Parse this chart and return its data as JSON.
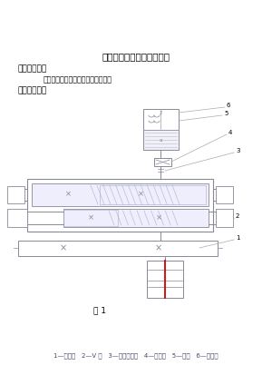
{
  "title": "机械设计课程设计原始资料",
  "section1": "一、设计题目",
  "subtitle": "热处理车间零件输送设备的传动装置",
  "section2": "二、运动简图",
  "fig_label": "图 1",
  "legend_text": "1—电动机   2—V 带   3—齿轮减速器   4—联轴器   5—滚筒   6—输送带",
  "bg_color": "#ffffff",
  "line_color": "#888899",
  "fill_light": "#f0f0f8",
  "red_color": "#cc0000",
  "label_color": "#888899"
}
